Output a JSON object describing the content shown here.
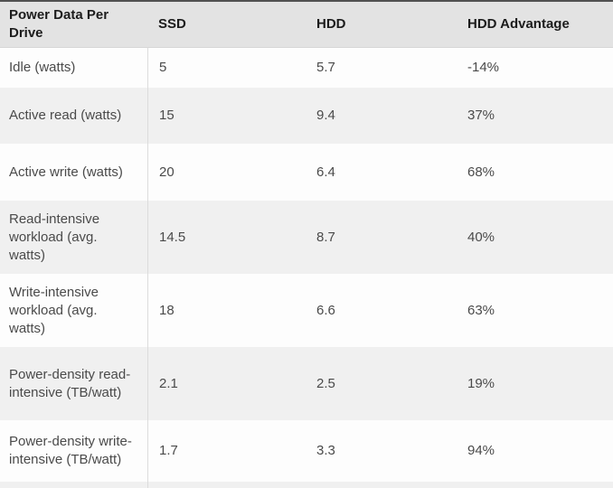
{
  "chart_data": {
    "type": "table",
    "title": "Power Data Per Drive",
    "categories": [
      "Idle (watts)",
      "Active read (watts)",
      "Active write (watts)",
      "Read-intensive workload (avg. watts)",
      "Write-intensive workload (avg. watts)",
      "Power-density read-intensive (TB/watt)",
      "Power-density write-intensive (TB/watt)"
    ],
    "series": [
      {
        "name": "SSD",
        "values": [
          "5",
          "15",
          "20",
          "14.5",
          "18",
          "2.1",
          "1.7"
        ]
      },
      {
        "name": "HDD",
        "values": [
          "5.7",
          "9.4",
          "6.4",
          "8.7",
          "6.6",
          "2.5",
          "3.3"
        ]
      },
      {
        "name": "HDD Advantage",
        "values": [
          "-14%",
          "37%",
          "68%",
          "40%",
          "63%",
          "19%",
          "94%"
        ]
      }
    ],
    "layout": {
      "header_background": "#e3e3e3",
      "row_background": "#fdfdfd",
      "alt_row_background": "#f0f0f0",
      "top_border_color": "#515151",
      "column_divider_color": "#dcdcdc",
      "header_text_color": "#1c1c1c",
      "body_text_color": "#4a4a4a"
    }
  },
  "table": {
    "label_column_header": "Power Data Per Drive"
  }
}
